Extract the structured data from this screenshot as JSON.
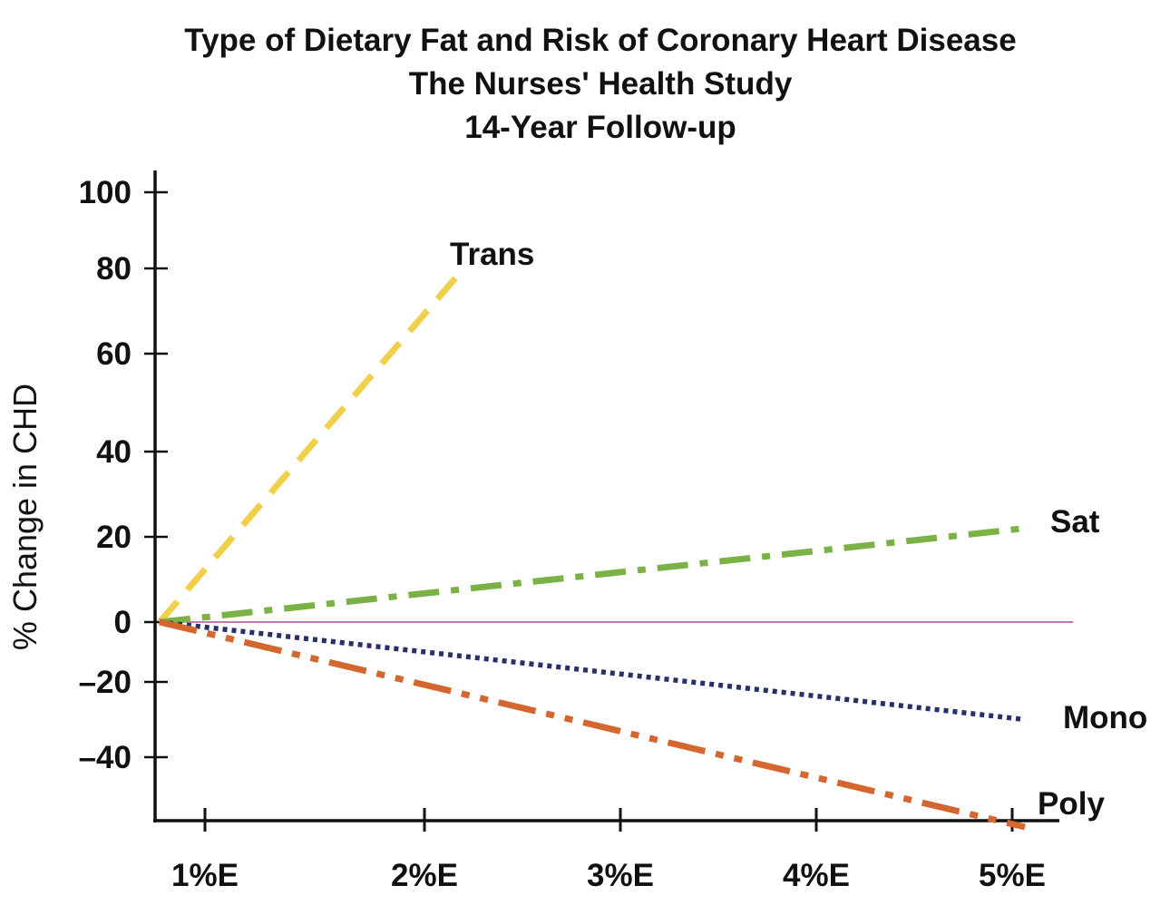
{
  "chart_data": {
    "type": "line",
    "title": [
      "Type of Dietary Fat and Risk of Coronary Heart Disease",
      "The Nurses' Health Study",
      "14-Year Follow-up"
    ],
    "xlabel": "",
    "ylabel": "% Change in CHD",
    "x_ticks": [
      "1%E",
      "2%E",
      "3%E",
      "4%E",
      "5%E"
    ],
    "y_ticks": [
      "100",
      "80",
      "60",
      "40",
      "20",
      "0",
      "–20",
      "–40"
    ],
    "y_tick_values": [
      100,
      80,
      60,
      40,
      20,
      0,
      -20,
      -40
    ],
    "xlim": [
      0.75,
      5.25
    ],
    "ylim": [
      -50,
      105
    ],
    "zero_line": true,
    "grid": false,
    "series": [
      {
        "name": "Trans",
        "color": "#f2cf4a",
        "style": "dashed",
        "points": [
          [
            0.8,
            0
          ],
          [
            2.2,
            80
          ]
        ]
      },
      {
        "name": "Sat",
        "color": "#7ab245",
        "style": "dashdot",
        "points": [
          [
            0.8,
            0
          ],
          [
            5.1,
            22
          ]
        ]
      },
      {
        "name": "Mono",
        "color": "#27306b",
        "style": "dotted",
        "points": [
          [
            0.8,
            0
          ],
          [
            5.1,
            -30
          ]
        ]
      },
      {
        "name": "Poly",
        "color": "#d4662f",
        "style": "dashdotdot",
        "points": [
          [
            0.8,
            0
          ],
          [
            5.1,
            -51
          ]
        ]
      }
    ],
    "colors": {
      "zero_line": "#b04a9a",
      "axis": "#111111"
    }
  }
}
